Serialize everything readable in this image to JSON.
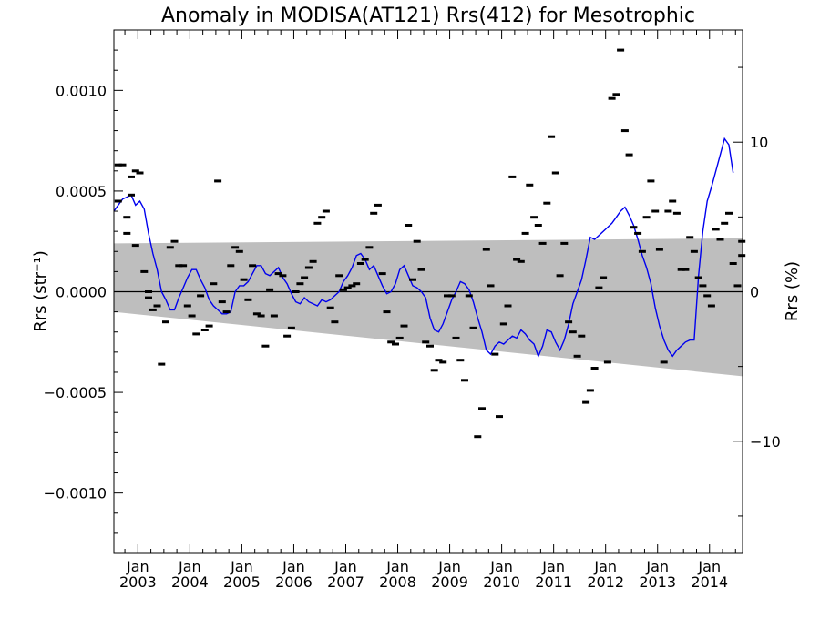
{
  "chart_data": {
    "type": "scatter",
    "title": "Anomaly in MODISA(AT121) Rrs(412) for Mesotrophic",
    "xlabel": "",
    "ylabel": "Rrs (str⁻¹)",
    "y2label": "Rrs (%)",
    "xlim": [
      "2002-07-15",
      "2014-08-20"
    ],
    "ylim": [
      -0.0013,
      0.0013
    ],
    "y2lim": [
      -17.5,
      17.5
    ],
    "x_ticks": [
      {
        "date": "2003-01-01",
        "top": "Jan",
        "bottom": "2003"
      },
      {
        "date": "2004-01-01",
        "top": "Jan",
        "bottom": "2004"
      },
      {
        "date": "2005-01-01",
        "top": "Jan",
        "bottom": "2005"
      },
      {
        "date": "2006-01-01",
        "top": "Jan",
        "bottom": "2006"
      },
      {
        "date": "2007-01-01",
        "top": "Jan",
        "bottom": "2007"
      },
      {
        "date": "2008-01-01",
        "top": "Jan",
        "bottom": "2008"
      },
      {
        "date": "2009-01-01",
        "top": "Jan",
        "bottom": "2009"
      },
      {
        "date": "2010-01-01",
        "top": "Jan",
        "bottom": "2010"
      },
      {
        "date": "2011-01-01",
        "top": "Jan",
        "bottom": "2011"
      },
      {
        "date": "2012-01-01",
        "top": "Jan",
        "bottom": "2012"
      },
      {
        "date": "2013-01-01",
        "top": "Jan",
        "bottom": "2013"
      },
      {
        "date": "2014-01-01",
        "top": "Jan",
        "bottom": "2014"
      }
    ],
    "y_ticks": [
      {
        "value": 0.001,
        "label": "0.0010"
      },
      {
        "value": 0.0005,
        "label": "0.0005"
      },
      {
        "value": 0.0,
        "label": "0.0000"
      },
      {
        "value": -0.0005,
        "label": "−0.0005"
      },
      {
        "value": -0.001,
        "label": "−0.0010"
      }
    ],
    "y2_ticks": [
      {
        "value": 10,
        "label": "10"
      },
      {
        "value": 0,
        "label": "0"
      },
      {
        "value": -10,
        "label": "−10"
      }
    ],
    "band": {
      "start": {
        "date": "2002-07-15",
        "upper": 0.00024,
        "lower": -0.0001
      },
      "end": {
        "date": "2014-08-20",
        "upper": 0.000265,
        "lower": -0.00042
      },
      "color": "#bebebe"
    },
    "zero_line": true,
    "colors": {
      "points": "#000000",
      "line": "#0000ee",
      "band": "#bebebe"
    },
    "points": {
      "x": [
        "2002-08",
        "2002-08",
        "2002-09",
        "2002-10",
        "2002-10",
        "2002-11",
        "2002-11",
        "2002-12",
        "2002-12",
        "2003-01",
        "2003-02",
        "2003-03",
        "2003-03",
        "2003-04",
        "2003-05",
        "2003-06",
        "2003-07",
        "2003-08",
        "2003-09",
        "2003-10",
        "2003-11",
        "2003-12",
        "2004-01",
        "2004-02",
        "2004-03",
        "2004-04",
        "2004-05",
        "2004-06",
        "2004-07",
        "2004-08",
        "2004-09",
        "2004-10",
        "2004-11",
        "2004-12",
        "2005-01",
        "2005-02",
        "2005-03",
        "2005-04",
        "2005-05",
        "2005-06",
        "2005-07",
        "2005-08",
        "2005-09",
        "2005-10",
        "2005-11",
        "2005-12",
        "2006-01",
        "2006-02",
        "2006-03",
        "2006-04",
        "2006-05",
        "2006-06",
        "2006-07",
        "2006-08",
        "2006-09",
        "2006-10",
        "2006-11",
        "2006-12",
        "2007-01",
        "2007-02",
        "2007-03",
        "2007-04",
        "2007-05",
        "2007-06",
        "2007-07",
        "2007-08",
        "2007-09",
        "2007-10",
        "2007-11",
        "2007-12",
        "2008-01",
        "2008-02",
        "2008-03",
        "2008-04",
        "2008-05",
        "2008-06",
        "2008-07",
        "2008-08",
        "2008-09",
        "2008-10",
        "2008-11",
        "2008-12",
        "2009-01",
        "2009-02",
        "2009-03",
        "2009-04",
        "2009-05",
        "2009-06",
        "2009-07",
        "2009-08",
        "2009-09",
        "2009-10",
        "2009-11",
        "2009-12",
        "2010-01",
        "2010-02",
        "2010-03",
        "2010-04",
        "2010-05",
        "2010-06",
        "2010-07",
        "2010-08",
        "2010-09",
        "2010-10",
        "2010-11",
        "2010-12",
        "2011-01",
        "2011-02",
        "2011-03",
        "2011-04",
        "2011-05",
        "2011-06",
        "2011-07",
        "2011-08",
        "2011-09",
        "2011-10",
        "2011-11",
        "2011-12",
        "2012-01",
        "2012-02",
        "2012-03",
        "2012-04",
        "2012-05",
        "2012-06",
        "2012-07",
        "2012-08",
        "2012-09",
        "2012-10",
        "2012-11",
        "2012-12",
        "2013-01",
        "2013-02",
        "2013-03",
        "2013-04",
        "2013-05",
        "2013-06",
        "2013-07",
        "2013-08",
        "2013-09",
        "2013-10",
        "2013-11",
        "2013-12",
        "2014-01",
        "2014-02",
        "2014-03",
        "2014-04",
        "2014-05",
        "2014-06",
        "2014-07",
        "2014-08",
        "2014-08"
      ],
      "y": [
        0.00063,
        0.00045,
        0.00063,
        0.00037,
        0.00029,
        0.00048,
        0.00057,
        0.00023,
        0.0006,
        0.00059,
        0.0001,
        0.0,
        -3e-05,
        -9e-05,
        -7e-05,
        -0.00036,
        -0.00015,
        0.00022,
        0.00025,
        0.00013,
        0.00013,
        -7e-05,
        -0.00012,
        -0.00021,
        -2e-05,
        -0.00019,
        -0.00017,
        4e-05,
        0.00055,
        -5e-05,
        -0.0001,
        0.00013,
        0.00022,
        0.0002,
        6e-05,
        -4e-05,
        0.00013,
        -0.00011,
        -0.00012,
        -0.00027,
        1e-05,
        -0.00012,
        9e-05,
        8e-05,
        -0.00022,
        -0.00018,
        0.0,
        4e-05,
        7e-05,
        0.00012,
        0.00015,
        0.00034,
        0.00037,
        0.0004,
        -8e-05,
        -0.00015,
        8e-05,
        1e-05,
        2e-05,
        3e-05,
        4e-05,
        0.00014,
        0.00016,
        0.00022,
        0.00039,
        0.00043,
        9e-05,
        -0.0001,
        -0.00025,
        -0.00026,
        -0.00023,
        -0.00017,
        0.00033,
        6e-05,
        0.00025,
        0.00011,
        -0.00025,
        -0.00027,
        -0.00039,
        -0.00034,
        -0.00035,
        -2e-05,
        -2e-05,
        -0.00023,
        -0.00034,
        -0.00044,
        -2e-05,
        -0.00018,
        -0.00072,
        -0.00058,
        0.00021,
        3e-05,
        -0.00031,
        -0.00062,
        -0.00016,
        -7e-05,
        0.00057,
        0.00016,
        0.00015,
        0.00029,
        0.00053,
        0.00037,
        0.00033,
        0.00024,
        0.00044,
        0.00077,
        0.00059,
        8e-05,
        0.00024,
        -0.00015,
        -0.0002,
        -0.00032,
        -0.00022,
        -0.00055,
        -0.00049,
        -0.00038,
        2e-05,
        7e-05,
        -0.00035,
        0.00096,
        0.00098,
        0.0012,
        0.0008,
        0.00068,
        0.00032,
        0.00029,
        0.0002,
        0.00037,
        0.00055,
        0.0004,
        0.00021,
        -0.00035,
        0.0004,
        0.00045,
        0.00039,
        0.00011,
        0.00011,
        0.00027,
        0.0002,
        7e-05,
        3e-05,
        -2e-05,
        -7e-05,
        0.00031,
        0.00026,
        0.00034,
        0.00039,
        0.00014,
        3e-05,
        0.00025,
        0.00018
      ]
    },
    "series": [
      {
        "values_x": [
          "2002-07",
          "2002-09",
          "2002-11",
          "2002-12",
          "2003-01",
          "2003-02",
          "2003-03",
          "2003-04",
          "2003-05",
          "2003-06",
          "2003-07",
          "2003-08",
          "2003-09",
          "2003-10",
          "2003-11",
          "2003-12",
          "2004-01",
          "2004-02",
          "2004-03",
          "2004-04",
          "2004-05",
          "2004-06",
          "2004-07",
          "2004-08",
          "2004-09",
          "2004-10",
          "2004-11",
          "2004-12",
          "2005-01",
          "2005-02",
          "2005-03",
          "2005-04",
          "2005-05",
          "2005-06",
          "2005-07",
          "2005-08",
          "2005-09",
          "2005-10",
          "2005-11",
          "2005-12",
          "2006-01",
          "2006-02",
          "2006-03",
          "2006-04",
          "2006-05",
          "2006-06",
          "2006-07",
          "2006-08",
          "2006-09",
          "2006-10",
          "2006-11",
          "2006-12",
          "2007-01",
          "2007-02",
          "2007-03",
          "2007-04",
          "2007-05",
          "2007-06",
          "2007-07",
          "2007-08",
          "2007-09",
          "2007-10",
          "2007-11",
          "2007-12",
          "2008-01",
          "2008-02",
          "2008-03",
          "2008-04",
          "2008-05",
          "2008-06",
          "2008-07",
          "2008-08",
          "2008-09",
          "2008-10",
          "2008-11",
          "2008-12",
          "2009-01",
          "2009-02",
          "2009-03",
          "2009-04",
          "2009-05",
          "2009-06",
          "2009-07",
          "2009-08",
          "2009-09",
          "2009-10",
          "2009-11",
          "2009-12",
          "2010-01",
          "2010-02",
          "2010-03",
          "2010-04",
          "2010-05",
          "2010-06",
          "2010-07",
          "2010-08",
          "2010-09",
          "2010-10",
          "2010-11",
          "2010-12",
          "2011-01",
          "2011-02",
          "2011-03",
          "2011-04",
          "2011-05",
          "2011-06",
          "2011-07",
          "2011-08",
          "2011-09",
          "2011-10",
          "2011-11",
          "2011-12",
          "2012-01",
          "2012-02",
          "2012-03",
          "2012-04",
          "2012-05",
          "2012-06",
          "2012-07",
          "2012-08",
          "2012-09",
          "2012-10",
          "2012-11",
          "2012-12",
          "2013-01",
          "2013-02",
          "2013-03",
          "2013-04",
          "2013-05",
          "2013-06",
          "2013-07",
          "2013-08",
          "2013-09",
          "2013-10",
          "2013-11",
          "2013-12",
          "2014-01",
          "2014-02",
          "2014-03",
          "2014-04",
          "2014-05",
          "2014-06",
          "2014-07",
          "2014-08"
        ],
        "values": [
          0.0004,
          0.00046,
          0.00048,
          0.00043,
          0.00045,
          0.00041,
          0.00029,
          0.00019,
          0.00011,
          0.0,
          -4e-05,
          -9e-05,
          -9e-05,
          -3e-05,
          2e-05,
          7e-05,
          0.00011,
          0.00011,
          6e-05,
          2e-05,
          -4e-05,
          -7e-05,
          -9e-05,
          -0.00011,
          -0.00011,
          -0.0001,
          0.0,
          3e-05,
          3e-05,
          5e-05,
          9e-05,
          0.00013,
          0.00013,
          9e-05,
          8e-05,
          0.0001,
          0.00012,
          7e-05,
          4e-05,
          -1e-05,
          -5e-05,
          -6e-05,
          -3e-05,
          -5e-05,
          -6e-05,
          -7e-05,
          -4e-05,
          -5e-05,
          -4e-05,
          -2e-05,
          0.0,
          5e-05,
          8e-05,
          0.00012,
          0.00018,
          0.00019,
          0.00016,
          0.00011,
          0.00013,
          8e-05,
          3e-05,
          -1e-05,
          0.0,
          4e-05,
          0.00011,
          0.00013,
          8e-05,
          3e-05,
          2e-05,
          0.0,
          -3e-05,
          -0.00013,
          -0.00019,
          -0.0002,
          -0.00016,
          -0.0001,
          -4e-05,
          0.0,
          5e-05,
          4e-05,
          1e-05,
          -5e-05,
          -0.00013,
          -0.0002,
          -0.00029,
          -0.00031,
          -0.00027,
          -0.00025,
          -0.00026,
          -0.00024,
          -0.00022,
          -0.00023,
          -0.00019,
          -0.00021,
          -0.00024,
          -0.00026,
          -0.00032,
          -0.00027,
          -0.00019,
          -0.0002,
          -0.00025,
          -0.00029,
          -0.00024,
          -0.00016,
          -6e-05,
          0.0,
          6e-05,
          0.00016,
          0.00027,
          0.00026,
          0.00028,
          0.0003,
          0.00032,
          0.00034,
          0.00037,
          0.0004,
          0.00042,
          0.00038,
          0.00033,
          0.00026,
          0.00018,
          0.00012,
          4e-05,
          -8e-05,
          -0.00017,
          -0.00024,
          -0.00029,
          -0.00032,
          -0.00029,
          -0.00027,
          -0.00025,
          -0.00024,
          -0.00024,
          8e-05,
          0.0003,
          0.00045,
          0.00052,
          0.0006,
          0.00068,
          0.00076,
          0.00073,
          0.00059
        ],
        "color": "#0000ee"
      }
    ]
  }
}
